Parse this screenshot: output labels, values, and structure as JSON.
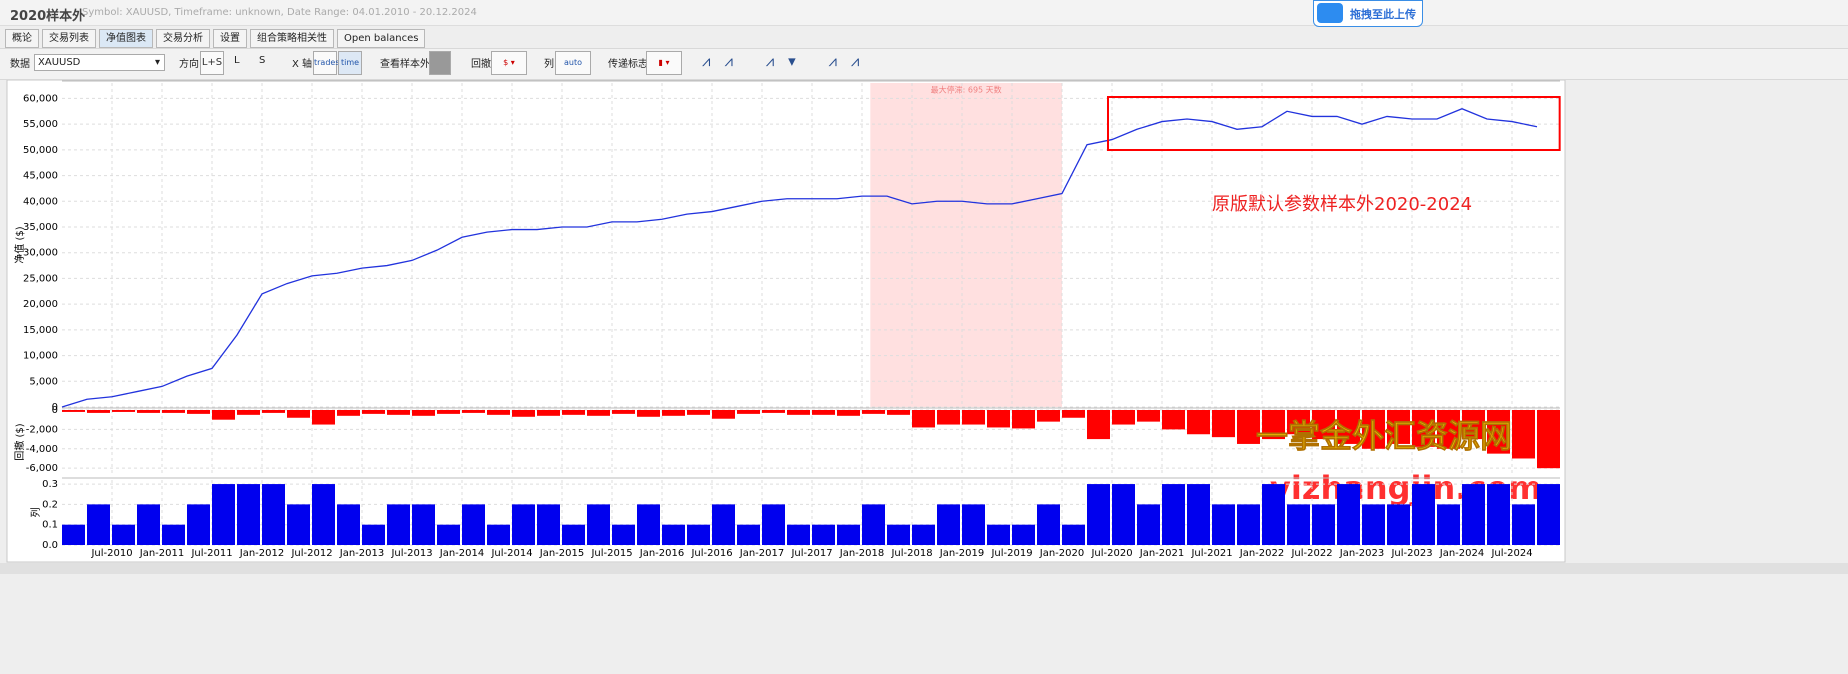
{
  "header": {
    "title": "2020样本外",
    "subtitle": "Symbol: XAUUSD, Timeframe: unknown, Date Range: 04.01.2010 - 20.12.2024",
    "upload": "拖拽至此上传"
  },
  "tabs": [
    "概论",
    "交易列表",
    "净值图表",
    "交易分析",
    "设置",
    "组合策略相关性",
    "Open balances"
  ],
  "toolbar": {
    "data_label": "数据",
    "data_value": "XAUUSD",
    "direction": "方向",
    "dir_options": [
      "L+S",
      "L",
      "S"
    ],
    "x_axis": "X 轴",
    "x_options": [
      "trades",
      "time"
    ],
    "out_of_sample": "查看样本外",
    "drawdown": "回撤",
    "column": "列",
    "column_option": "auto",
    "signal": "传递标志"
  },
  "chart_data": [
    {
      "type": "line",
      "y_label": "净值 ($)",
      "color": "#2233dd",
      "grid": true,
      "annotation": "原版默认参数样本外2020-2024",
      "stagnation_label": "最大停滞: 695 天数",
      "stagnation_range": [
        "Feb-2018",
        "Jan-2020"
      ],
      "highlight_range": [
        "Jul-2020",
        "Dec-2024"
      ],
      "x": [
        "Jan-2010",
        "Apr-2010",
        "Jul-2010",
        "Oct-2010",
        "Jan-2011",
        "Apr-2011",
        "Jul-2011",
        "Oct-2011",
        "Jan-2012",
        "Apr-2012",
        "Jul-2012",
        "Oct-2012",
        "Jan-2013",
        "Apr-2013",
        "Jul-2013",
        "Oct-2013",
        "Jan-2014",
        "Apr-2014",
        "Jul-2014",
        "Oct-2014",
        "Jan-2015",
        "Apr-2015",
        "Jul-2015",
        "Oct-2015",
        "Jan-2016",
        "Apr-2016",
        "Jul-2016",
        "Oct-2016",
        "Jan-2017",
        "Apr-2017",
        "Jul-2017",
        "Oct-2017",
        "Jan-2018",
        "Apr-2018",
        "Jul-2018",
        "Oct-2018",
        "Jan-2019",
        "Apr-2019",
        "Jul-2019",
        "Oct-2019",
        "Jan-2020",
        "Apr-2020",
        "Jul-2020",
        "Oct-2020",
        "Jan-2021",
        "Apr-2021",
        "Jul-2021",
        "Oct-2021",
        "Jan-2022",
        "Apr-2022",
        "Jul-2022",
        "Oct-2022",
        "Jan-2023",
        "Apr-2023",
        "Jul-2023",
        "Oct-2023",
        "Jan-2024",
        "Apr-2024",
        "Jul-2024",
        "Oct-2024"
      ],
      "values": [
        0,
        1500,
        2000,
        3000,
        4000,
        6000,
        7500,
        14000,
        22000,
        24000,
        25500,
        26000,
        27000,
        27500,
        28500,
        30500,
        33000,
        34000,
        34500,
        34500,
        35000,
        35000,
        36000,
        36000,
        36500,
        37500,
        38000,
        39000,
        40000,
        40500,
        40500,
        40500,
        41000,
        41000,
        39500,
        40000,
        40000,
        39500,
        39500,
        40500,
        41500,
        51000,
        52000,
        54000,
        55500,
        56000,
        55500,
        54000,
        54500,
        57500,
        56500,
        56500,
        55000,
        56500,
        56000,
        56000,
        58000,
        56000,
        55500,
        54500
      ],
      "ylim": [
        0,
        63000
      ],
      "yticks": [
        0,
        {
          "value": 5000,
          "label": "5,000"
        },
        {
          "value": 10000,
          "label": "10,000"
        },
        {
          "value": 15000,
          "label": "15,000"
        },
        {
          "value": 20000,
          "label": "20,000"
        },
        {
          "value": 25000,
          "label": "25,000"
        },
        {
          "value": 30000,
          "label": "30,000"
        },
        {
          "value": 35000,
          "label": "35,000"
        },
        {
          "value": 40000,
          "label": "40,000"
        },
        {
          "value": 45000,
          "label": "45,000"
        },
        {
          "value": 50000,
          "label": "50,000"
        },
        {
          "value": 55000,
          "label": "55,000"
        },
        {
          "value": 60000,
          "label": "60,000"
        }
      ]
    },
    {
      "type": "bar",
      "y_label": "回撤 ($)",
      "color": "#ff0000",
      "grid": true,
      "x": [
        "Jan-2010",
        "Apr-2010",
        "Jul-2010",
        "Oct-2010",
        "Jan-2011",
        "Apr-2011",
        "Jul-2011",
        "Oct-2011",
        "Jan-2012",
        "Apr-2012",
        "Jul-2012",
        "Oct-2012",
        "Jan-2013",
        "Apr-2013",
        "Jul-2013",
        "Oct-2013",
        "Jan-2014",
        "Apr-2014",
        "Jul-2014",
        "Oct-2014",
        "Jan-2015",
        "Apr-2015",
        "Jul-2015",
        "Oct-2015",
        "Jan-2016",
        "Apr-2016",
        "Jul-2016",
        "Oct-2016",
        "Jan-2017",
        "Apr-2017",
        "Jul-2017",
        "Oct-2017",
        "Jan-2018",
        "Apr-2018",
        "Jul-2018",
        "Oct-2018",
        "Jan-2019",
        "Apr-2019",
        "Jul-2019",
        "Oct-2019",
        "Jan-2020",
        "Apr-2020",
        "Jul-2020",
        "Oct-2020",
        "Jan-2021",
        "Apr-2021",
        "Jul-2021",
        "Oct-2021",
        "Jan-2022",
        "Apr-2022",
        "Jul-2022",
        "Oct-2022",
        "Jan-2023",
        "Apr-2023",
        "Jul-2023",
        "Oct-2023",
        "Jan-2024",
        "Apr-2024",
        "Jul-2024",
        "Oct-2024"
      ],
      "values": [
        -200,
        -300,
        -200,
        -300,
        -300,
        -400,
        -1000,
        -500,
        -300,
        -800,
        -1500,
        -600,
        -400,
        -500,
        -600,
        -400,
        -300,
        -500,
        -700,
        -600,
        -500,
        -600,
        -400,
        -700,
        -600,
        -500,
        -900,
        -400,
        -300,
        -500,
        -500,
        -600,
        -400,
        -500,
        -1800,
        -1500,
        -1500,
        -1800,
        -1900,
        -1200,
        -800,
        -3000,
        -1500,
        -1200,
        -2000,
        -2500,
        -2800,
        -3500,
        -3000,
        -2500,
        -3000,
        -3500,
        -4000,
        -3500,
        -3800,
        -4000,
        -3000,
        -4500,
        -5000,
        -6000
      ],
      "ylim": [
        -6600,
        0
      ],
      "yticks": [
        0,
        {
          "value": -2000,
          "label": "-2,000"
        },
        {
          "value": -4000,
          "label": "-4,000"
        },
        {
          "value": -6000,
          "label": "-6,000"
        }
      ],
      "watermark": [
        "一掌金外汇资源网",
        "yizhangjin.com"
      ]
    },
    {
      "type": "bar",
      "y_label": "列",
      "color": "#0000ee",
      "grid": true,
      "x": [
        "Jan-2010",
        "Apr-2010",
        "Jul-2010",
        "Oct-2010",
        "Jan-2011",
        "Apr-2011",
        "Jul-2011",
        "Oct-2011",
        "Jan-2012",
        "Apr-2012",
        "Jul-2012",
        "Oct-2012",
        "Jan-2013",
        "Apr-2013",
        "Jul-2013",
        "Oct-2013",
        "Jan-2014",
        "Apr-2014",
        "Jul-2014",
        "Oct-2014",
        "Jan-2015",
        "Apr-2015",
        "Jul-2015",
        "Oct-2015",
        "Jan-2016",
        "Apr-2016",
        "Jul-2016",
        "Oct-2016",
        "Jan-2017",
        "Apr-2017",
        "Jul-2017",
        "Oct-2017",
        "Jan-2018",
        "Apr-2018",
        "Jul-2018",
        "Oct-2018",
        "Jan-2019",
        "Apr-2019",
        "Jul-2019",
        "Oct-2019",
        "Jan-2020",
        "Apr-2020",
        "Jul-2020",
        "Oct-2020",
        "Jan-2021",
        "Apr-2021",
        "Jul-2021",
        "Oct-2021",
        "Jan-2022",
        "Apr-2022",
        "Jul-2022",
        "Oct-2022",
        "Jan-2023",
        "Apr-2023",
        "Jul-2023",
        "Oct-2023",
        "Jan-2024",
        "Apr-2024",
        "Jul-2024",
        "Oct-2024"
      ],
      "values": [
        0.1,
        0.2,
        0.1,
        0.2,
        0.1,
        0.2,
        0.3,
        0.3,
        0.3,
        0.2,
        0.3,
        0.2,
        0.1,
        0.2,
        0.2,
        0.1,
        0.2,
        0.1,
        0.2,
        0.2,
        0.1,
        0.2,
        0.1,
        0.2,
        0.1,
        0.1,
        0.2,
        0.1,
        0.2,
        0.1,
        0.1,
        0.1,
        0.2,
        0.1,
        0.1,
        0.2,
        0.2,
        0.1,
        0.1,
        0.2,
        0.1,
        0.3,
        0.3,
        0.2,
        0.3,
        0.3,
        0.2,
        0.2,
        0.3,
        0.2,
        0.2,
        0.3,
        0.2,
        0.2,
        0.3,
        0.2,
        0.3,
        0.3,
        0.2,
        0.3
      ],
      "ylim": [
        0,
        0.32
      ],
      "yticks": [
        {
          "value": 0,
          "label": "0.0"
        },
        0.1,
        0.2,
        0.3
      ],
      "xticks": [
        "Jul-2010",
        "Jan-2011",
        "Jul-2011",
        "Jan-2012",
        "Jul-2012",
        "Jan-2013",
        "Jul-2013",
        "Jan-2014",
        "Jul-2014",
        "Jan-2015",
        "Jul-2015",
        "Jan-2016",
        "Jul-2016",
        "Jan-2017",
        "Jul-2017",
        "Jan-2018",
        "Jul-2018",
        "Jan-2019",
        "Jul-2019",
        "Jan-2020",
        "Jul-2020",
        "Jan-2021",
        "Jul-2021",
        "Jan-2022",
        "Jul-2022",
        "Jan-2023",
        "Jul-2023",
        "Jan-2024",
        "Jul-2024"
      ]
    }
  ]
}
